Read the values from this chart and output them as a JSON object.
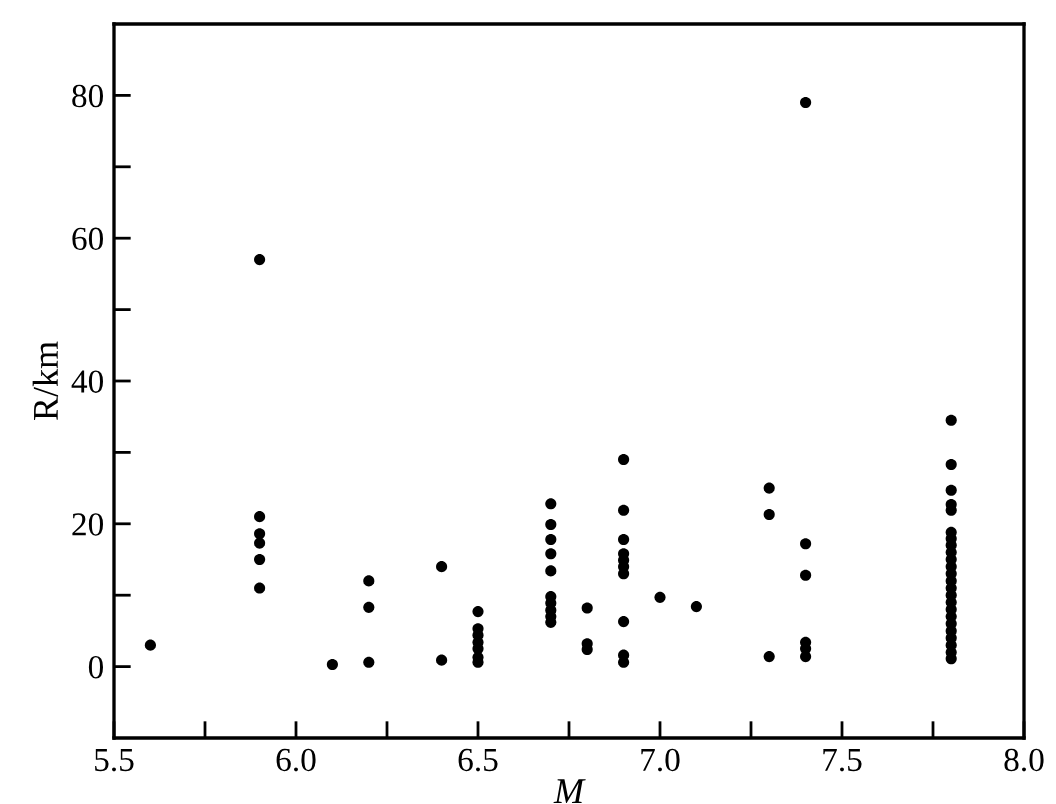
{
  "chart_data": {
    "type": "scatter",
    "xlabel": "M",
    "ylabel": "R/km",
    "xlim": [
      5.5,
      8.0
    ],
    "ylim": [
      -10,
      90
    ],
    "xticks": [
      {
        "value": 5.5,
        "label": "5.5"
      },
      {
        "value": 5.75,
        "label": null
      },
      {
        "value": 6.0,
        "label": "6.0"
      },
      {
        "value": 6.25,
        "label": null
      },
      {
        "value": 6.5,
        "label": "6.5"
      },
      {
        "value": 6.75,
        "label": null
      },
      {
        "value": 7.0,
        "label": "7.0"
      },
      {
        "value": 7.25,
        "label": null
      },
      {
        "value": 7.5,
        "label": "7.5"
      },
      {
        "value": 7.75,
        "label": null
      },
      {
        "value": 8.0,
        "label": "8.0"
      }
    ],
    "yticks": [
      0,
      {
        "value": 10,
        "label": null
      },
      20,
      {
        "value": 30,
        "label": null
      },
      40,
      {
        "value": 50,
        "label": null
      },
      60,
      {
        "value": 70,
        "label": null
      },
      80
    ],
    "grid": false,
    "marker": "circle",
    "series": [
      {
        "color": "#000000",
        "x": [
          5.6,
          5.9,
          5.9,
          5.9,
          5.9,
          5.9,
          5.9,
          6.1,
          6.2,
          6.2,
          6.2,
          6.4,
          6.4,
          6.5,
          6.5,
          6.5,
          6.5,
          6.5,
          6.5,
          6.5,
          6.7,
          6.7,
          6.7,
          6.7,
          6.7,
          6.7,
          6.7,
          6.7,
          6.7,
          6.7,
          6.8,
          6.8,
          6.8,
          6.9,
          6.9,
          6.9,
          6.9,
          6.9,
          6.9,
          6.9,
          6.9,
          6.9,
          6.9,
          7.0,
          7.1,
          7.3,
          7.3,
          7.3,
          7.4,
          7.4,
          7.4,
          7.4,
          7.4,
          7.4,
          7.8,
          7.8,
          7.8,
          7.8,
          7.8,
          7.8,
          7.8,
          7.8,
          7.8,
          7.8,
          7.8,
          7.8,
          7.8,
          7.8,
          7.8,
          7.8,
          7.8,
          7.8,
          7.8,
          7.8,
          7.8,
          7.8,
          7.8,
          7.8
        ],
        "values": [
          3,
          57,
          21,
          18.6,
          17.3,
          15,
          11,
          0.3,
          12,
          8.3,
          0.6,
          14,
          0.9,
          7.7,
          5.3,
          4.4,
          3.4,
          2.5,
          1.3,
          0.6,
          22.8,
          19.9,
          17.8,
          15.8,
          13.4,
          9.8,
          8.9,
          7.9,
          7,
          6.2,
          8.2,
          3.2,
          2.4,
          29,
          21.9,
          17.8,
          15.8,
          14.9,
          14,
          13,
          6.3,
          1.6,
          0.6,
          9.7,
          8.4,
          25,
          21.3,
          1.4,
          79,
          17.2,
          12.8,
          3.4,
          2.5,
          1.4,
          34.5,
          28.3,
          24.7,
          22.7,
          21.9,
          18.8,
          17.9,
          17,
          16,
          15,
          14,
          13,
          12,
          11,
          10,
          9,
          8,
          7,
          6,
          5,
          4,
          3,
          2,
          1.1
        ]
      }
    ]
  }
}
